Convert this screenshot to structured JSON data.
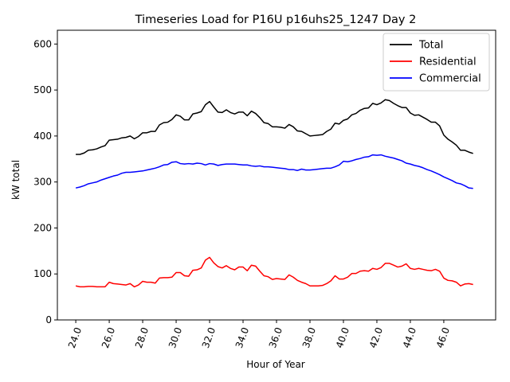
{
  "chart_data": {
    "type": "line",
    "title": "Timeseries Load for P16U p16uhs25_1247  Day 2",
    "xlabel": "Hour of Year",
    "ylabel": "kW total",
    "xlim": [
      22.9,
      49.1
    ],
    "ylim": [
      0,
      630
    ],
    "xticks": [
      24,
      26,
      28,
      30,
      32,
      34,
      36,
      38,
      40,
      42,
      44,
      46
    ],
    "xtick_labels": [
      "24.0",
      "26.0",
      "28.0",
      "30.0",
      "32.0",
      "34.0",
      "36.0",
      "38.0",
      "40.0",
      "42.0",
      "44.0",
      "46.0"
    ],
    "yticks": [
      0,
      100,
      200,
      300,
      400,
      500,
      600
    ],
    "ytick_labels": [
      "0",
      "100",
      "200",
      "300",
      "400",
      "500",
      "600"
    ],
    "grid": false,
    "legend_position": "top-right",
    "x": [
      24.0,
      24.25,
      24.5,
      24.75,
      25.0,
      25.25,
      25.5,
      25.75,
      26.0,
      26.25,
      26.5,
      26.75,
      27.0,
      27.25,
      27.5,
      27.75,
      28.0,
      28.25,
      28.5,
      28.75,
      29.0,
      29.25,
      29.5,
      29.75,
      30.0,
      30.25,
      30.5,
      30.75,
      31.0,
      31.25,
      31.5,
      31.75,
      32.0,
      32.25,
      32.5,
      32.75,
      33.0,
      33.25,
      33.5,
      33.75,
      34.0,
      34.25,
      34.5,
      34.75,
      35.0,
      35.25,
      35.5,
      35.75,
      36.0,
      36.25,
      36.5,
      36.75,
      37.0,
      37.25,
      37.5,
      37.75,
      38.0,
      38.25,
      38.5,
      38.75,
      39.0,
      39.25,
      39.5,
      39.75,
      40.0,
      40.25,
      40.5,
      40.75,
      41.0,
      41.25,
      41.5,
      41.75,
      42.0,
      42.25,
      42.5,
      42.75,
      43.0,
      43.25,
      43.5,
      43.75,
      44.0,
      44.25,
      44.5,
      44.75,
      45.0,
      45.25,
      45.5,
      45.75,
      46.0,
      46.25,
      46.5,
      46.75,
      47.0,
      47.25,
      47.5,
      47.75
    ],
    "series": [
      {
        "name": "Total",
        "color": "#000000",
        "values": [
          360,
          360,
          363,
          369,
          370,
          372,
          376,
          379,
          391,
          392,
          393,
          396,
          397,
          400,
          394,
          399,
          407,
          407,
          410,
          410,
          424,
          429,
          430,
          436,
          446,
          443,
          435,
          435,
          448,
          450,
          453,
          468,
          475,
          463,
          452,
          451,
          457,
          451,
          448,
          452,
          452,
          444,
          454,
          449,
          440,
          429,
          427,
          420,
          420,
          419,
          417,
          425,
          420,
          411,
          410,
          405,
          400,
          401,
          402,
          403,
          410,
          415,
          428,
          426,
          434,
          437,
          446,
          449,
          456,
          460,
          461,
          471,
          468,
          472,
          479,
          477,
          471,
          466,
          462,
          462,
          450,
          445,
          446,
          441,
          436,
          430,
          430,
          422,
          402,
          393,
          387,
          380,
          369,
          369,
          365,
          362
        ]
      },
      {
        "name": "Residential",
        "color": "#ff0000",
        "values": [
          74,
          72,
          72,
          73,
          73,
          72,
          72,
          72,
          82,
          79,
          78,
          77,
          76,
          79,
          72,
          76,
          84,
          82,
          82,
          80,
          91,
          92,
          92,
          93,
          103,
          103,
          96,
          95,
          108,
          109,
          113,
          130,
          136,
          124,
          116,
          113,
          118,
          112,
          109,
          115,
          115,
          107,
          119,
          117,
          106,
          96,
          94,
          88,
          90,
          89,
          88,
          98,
          93,
          86,
          82,
          79,
          74,
          74,
          74,
          75,
          79,
          85,
          96,
          89,
          89,
          93,
          101,
          101,
          106,
          107,
          106,
          112,
          110,
          114,
          123,
          123,
          119,
          115,
          117,
          122,
          112,
          110,
          112,
          110,
          108,
          107,
          110,
          106,
          91,
          86,
          85,
          82,
          74,
          78,
          79,
          77
        ]
      },
      {
        "name": "Commercial",
        "color": "#0000ff",
        "values": [
          287,
          289,
          292,
          296,
          298,
          300,
          304,
          307,
          310,
          313,
          315,
          319,
          321,
          321,
          322,
          323,
          324,
          326,
          328,
          330,
          333,
          337,
          338,
          343,
          344,
          340,
          339,
          340,
          339,
          341,
          340,
          337,
          340,
          339,
          336,
          338,
          339,
          339,
          339,
          338,
          337,
          337,
          335,
          334,
          335,
          333,
          333,
          332,
          331,
          330,
          329,
          327,
          327,
          325,
          328,
          326,
          326,
          327,
          328,
          329,
          330,
          330,
          333,
          337,
          345,
          344,
          346,
          349,
          351,
          354,
          355,
          359,
          358,
          359,
          356,
          354,
          352,
          349,
          346,
          341,
          339,
          336,
          334,
          331,
          327,
          324,
          320,
          316,
          311,
          307,
          303,
          298,
          296,
          292,
          287,
          286
        ]
      }
    ]
  }
}
